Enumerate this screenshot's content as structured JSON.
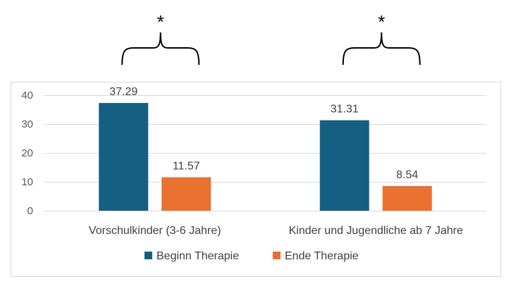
{
  "chart_data": {
    "type": "bar",
    "categories": [
      "Vorschulkinder (3-6 Jahre)",
      "Kinder und Jugendliche ab 7 Jahre"
    ],
    "series": [
      {
        "name": "Beginn Therapie",
        "values": [
          37.29,
          31.31
        ],
        "labels": [
          "37.29",
          "31.31"
        ],
        "color": "#156082"
      },
      {
        "name": "Ende Therapie",
        "values": [
          11.57,
          8.54
        ],
        "labels": [
          "11.57",
          "8.54"
        ],
        "color": "#E97132"
      }
    ],
    "y_ticks": [
      0,
      10,
      20,
      30,
      40
    ],
    "y_tick_labels": [
      "0",
      "10",
      "20",
      "30",
      "40"
    ],
    "ylim": [
      0,
      40
    ],
    "grid": true,
    "legend_position": "bottom",
    "significance_marks": [
      "*",
      "*"
    ]
  }
}
